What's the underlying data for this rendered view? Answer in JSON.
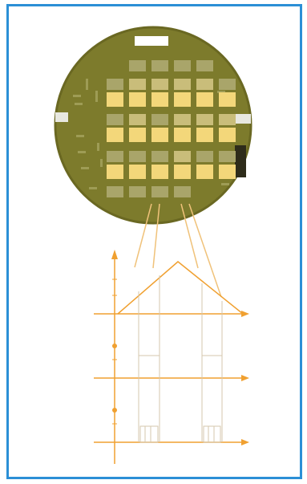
{
  "figure": {
    "wafer": {
      "flat_marker": "notch",
      "body_color": "#7a7a2a",
      "edge_color": "#5e5e1e",
      "die_colors": {
        "bright": "#f3d77a",
        "muted": "#c9bd7a",
        "dim": "#a9a56a"
      },
      "die_grid": {
        "rows": 7,
        "columns": 6
      }
    },
    "connector_color": "#f0c27a",
    "timing_diagram": {
      "line_color": "#f0a030",
      "thin_line_color": "#d8c6a8",
      "axes": 3
    }
  }
}
